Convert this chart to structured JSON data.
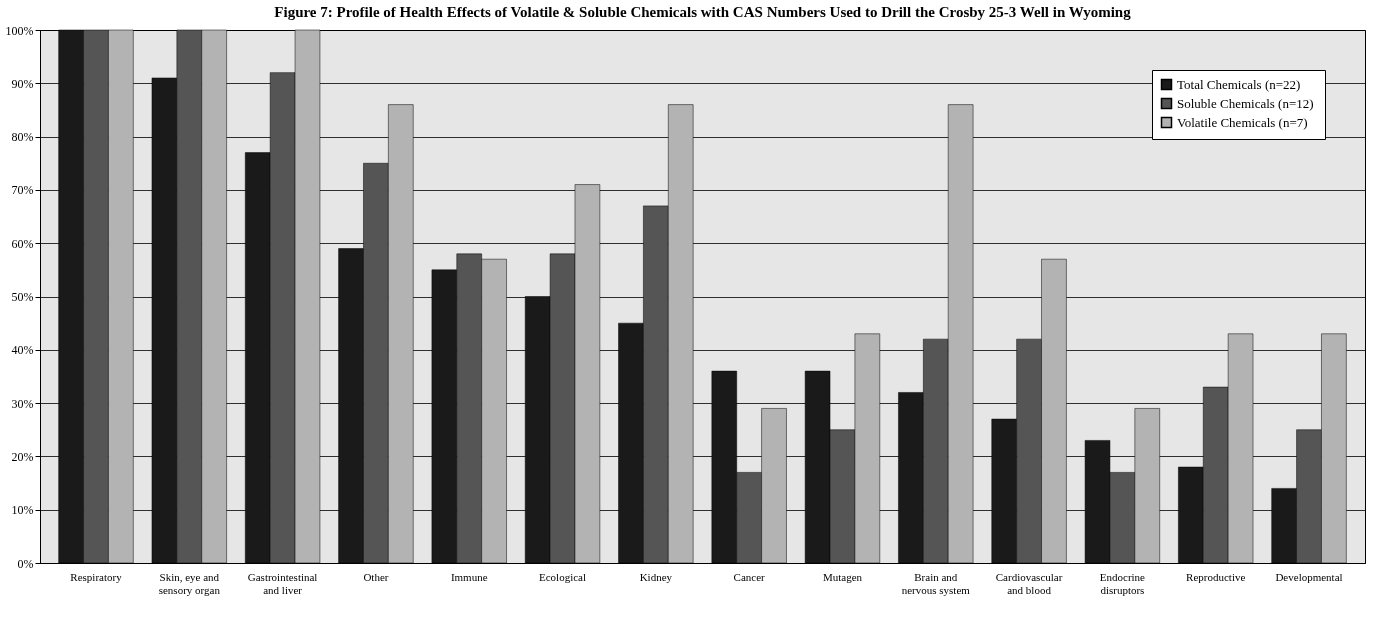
{
  "chart_data": {
    "type": "bar",
    "title": "Figure 7: Profile of Health Effects of Volatile & Soluble Chemicals with CAS Numbers Used to Drill the Crosby 25-3 Well in Wyoming",
    "categories": [
      "Respiratory",
      "Skin, eye and sensory organ",
      "Gastrointestinal and liver",
      "Other",
      "Immune",
      "Ecological",
      "Kidney",
      "Cancer",
      "Mutagen",
      "Brain and nervous system",
      "Cardiovascular and blood",
      "Endocrine disruptors",
      "Reproductive",
      "Developmental"
    ],
    "series": [
      {
        "name": "Total Chemicals  (n=22)",
        "color": "#1a1a1a",
        "values": [
          100,
          91,
          77,
          59,
          55,
          50,
          45,
          36,
          36,
          32,
          27,
          23,
          18,
          14
        ]
      },
      {
        "name": "Soluble Chemicals  (n=12)",
        "color": "#555555",
        "values": [
          100,
          100,
          92,
          75,
          58,
          58,
          67,
          17,
          25,
          42,
          42,
          17,
          33,
          25
        ]
      },
      {
        "name": "Volatile Chemicals  (n=7)",
        "color": "#b3b3b3",
        "values": [
          100,
          100,
          100,
          86,
          57,
          71,
          86,
          29,
          43,
          86,
          57,
          29,
          43,
          43
        ]
      }
    ],
    "ylim": [
      0,
      100
    ],
    "yticks": [
      {
        "value": 0,
        "label": "0%"
      },
      {
        "value": 10,
        "label": "10%"
      },
      {
        "value": 20,
        "label": "20%"
      },
      {
        "value": 30,
        "label": "30%"
      },
      {
        "value": 40,
        "label": "40%"
      },
      {
        "value": 50,
        "label": "50%"
      },
      {
        "value": 60,
        "label": "60%"
      },
      {
        "value": 70,
        "label": "70%"
      },
      {
        "value": 80,
        "label": "80%"
      },
      {
        "value": 90,
        "label": "90%"
      },
      {
        "value": 100,
        "label": "100%"
      }
    ],
    "grid": "y",
    "legend": "top right"
  }
}
